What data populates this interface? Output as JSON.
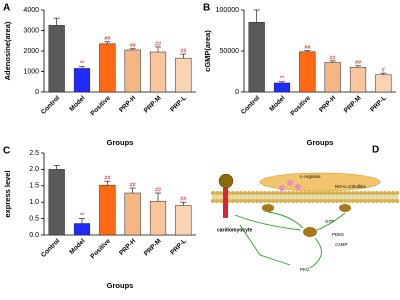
{
  "chart_data": [
    {
      "type": "bar",
      "panel": "A",
      "ylabel": "Adenosine(area)",
      "xlabel": "Groups",
      "categories": [
        "Control",
        "Model",
        "Positive",
        "PRP-H",
        "PRP-M",
        "PRP-L"
      ],
      "values": [
        3250,
        1150,
        2350,
        2050,
        1950,
        1650
      ],
      "errors": [
        350,
        100,
        100,
        60,
        250,
        200
      ],
      "annotations": [
        "",
        "**",
        "##",
        "##",
        "##",
        "##"
      ],
      "colors": [
        "#5a5a5a",
        "#1f2bff",
        "#ff6a13",
        "#f6b584",
        "#f8c59c",
        "#fad3b4"
      ],
      "ylim": [
        0,
        4000
      ],
      "yticks": [
        0,
        1000,
        2000,
        3000,
        4000
      ]
    },
    {
      "type": "bar",
      "panel": "B",
      "ylabel": "cGMP(area)",
      "xlabel": "Groups",
      "categories": [
        "Control",
        "Model",
        "Positive",
        "PRP-H",
        "PRP-M",
        "PRP-L"
      ],
      "values": [
        85000,
        11000,
        49000,
        36000,
        30000,
        21000
      ],
      "errors": [
        15000,
        1500,
        1500,
        2000,
        2000,
        2000
      ],
      "annotations": [
        "",
        "**",
        "##",
        "##",
        "##",
        "#"
      ],
      "colors": [
        "#5a5a5a",
        "#1f2bff",
        "#ff6a13",
        "#f6b584",
        "#f8c59c",
        "#fad3b4"
      ],
      "ylim": [
        0,
        100000
      ],
      "yticks": [
        0,
        50000,
        100000
      ]
    },
    {
      "type": "bar",
      "panel": "C",
      "ylabel": "express level",
      "xlabel": "Groups",
      "categories": [
        "Control",
        "Model",
        "Positive",
        "PRP-H",
        "PRP-M",
        "PRP-L"
      ],
      "values": [
        2.0,
        0.35,
        1.52,
        1.28,
        1.03,
        0.9
      ],
      "errors": [
        0.12,
        0.15,
        0.12,
        0.15,
        0.25,
        0.1
      ],
      "annotations": [
        "",
        "**",
        "##",
        "##",
        "##",
        "##"
      ],
      "colors": [
        "#5a5a5a",
        "#1f2bff",
        "#ff6a13",
        "#f6b584",
        "#f8c59c",
        "#fad3b4"
      ],
      "ylim": [
        0,
        2.5
      ],
      "yticks": [
        {
          "value": 0,
          "label": "0.0"
        },
        {
          "value": 0.5,
          "label": "0.5"
        },
        {
          "value": 1,
          "label": "1.0"
        },
        {
          "value": 1.5,
          "label": "1.5"
        },
        {
          "value": 2,
          "label": "2.0"
        },
        {
          "value": 2.5,
          "label": "2.5"
        }
      ]
    }
  ],
  "diagram": {
    "panel": "D",
    "labels": [
      "L-Arginine",
      "NO+L-Citrulline",
      "cardiomyocyte",
      "GTP",
      "cGMP",
      "PKG",
      "PDE5"
    ]
  }
}
